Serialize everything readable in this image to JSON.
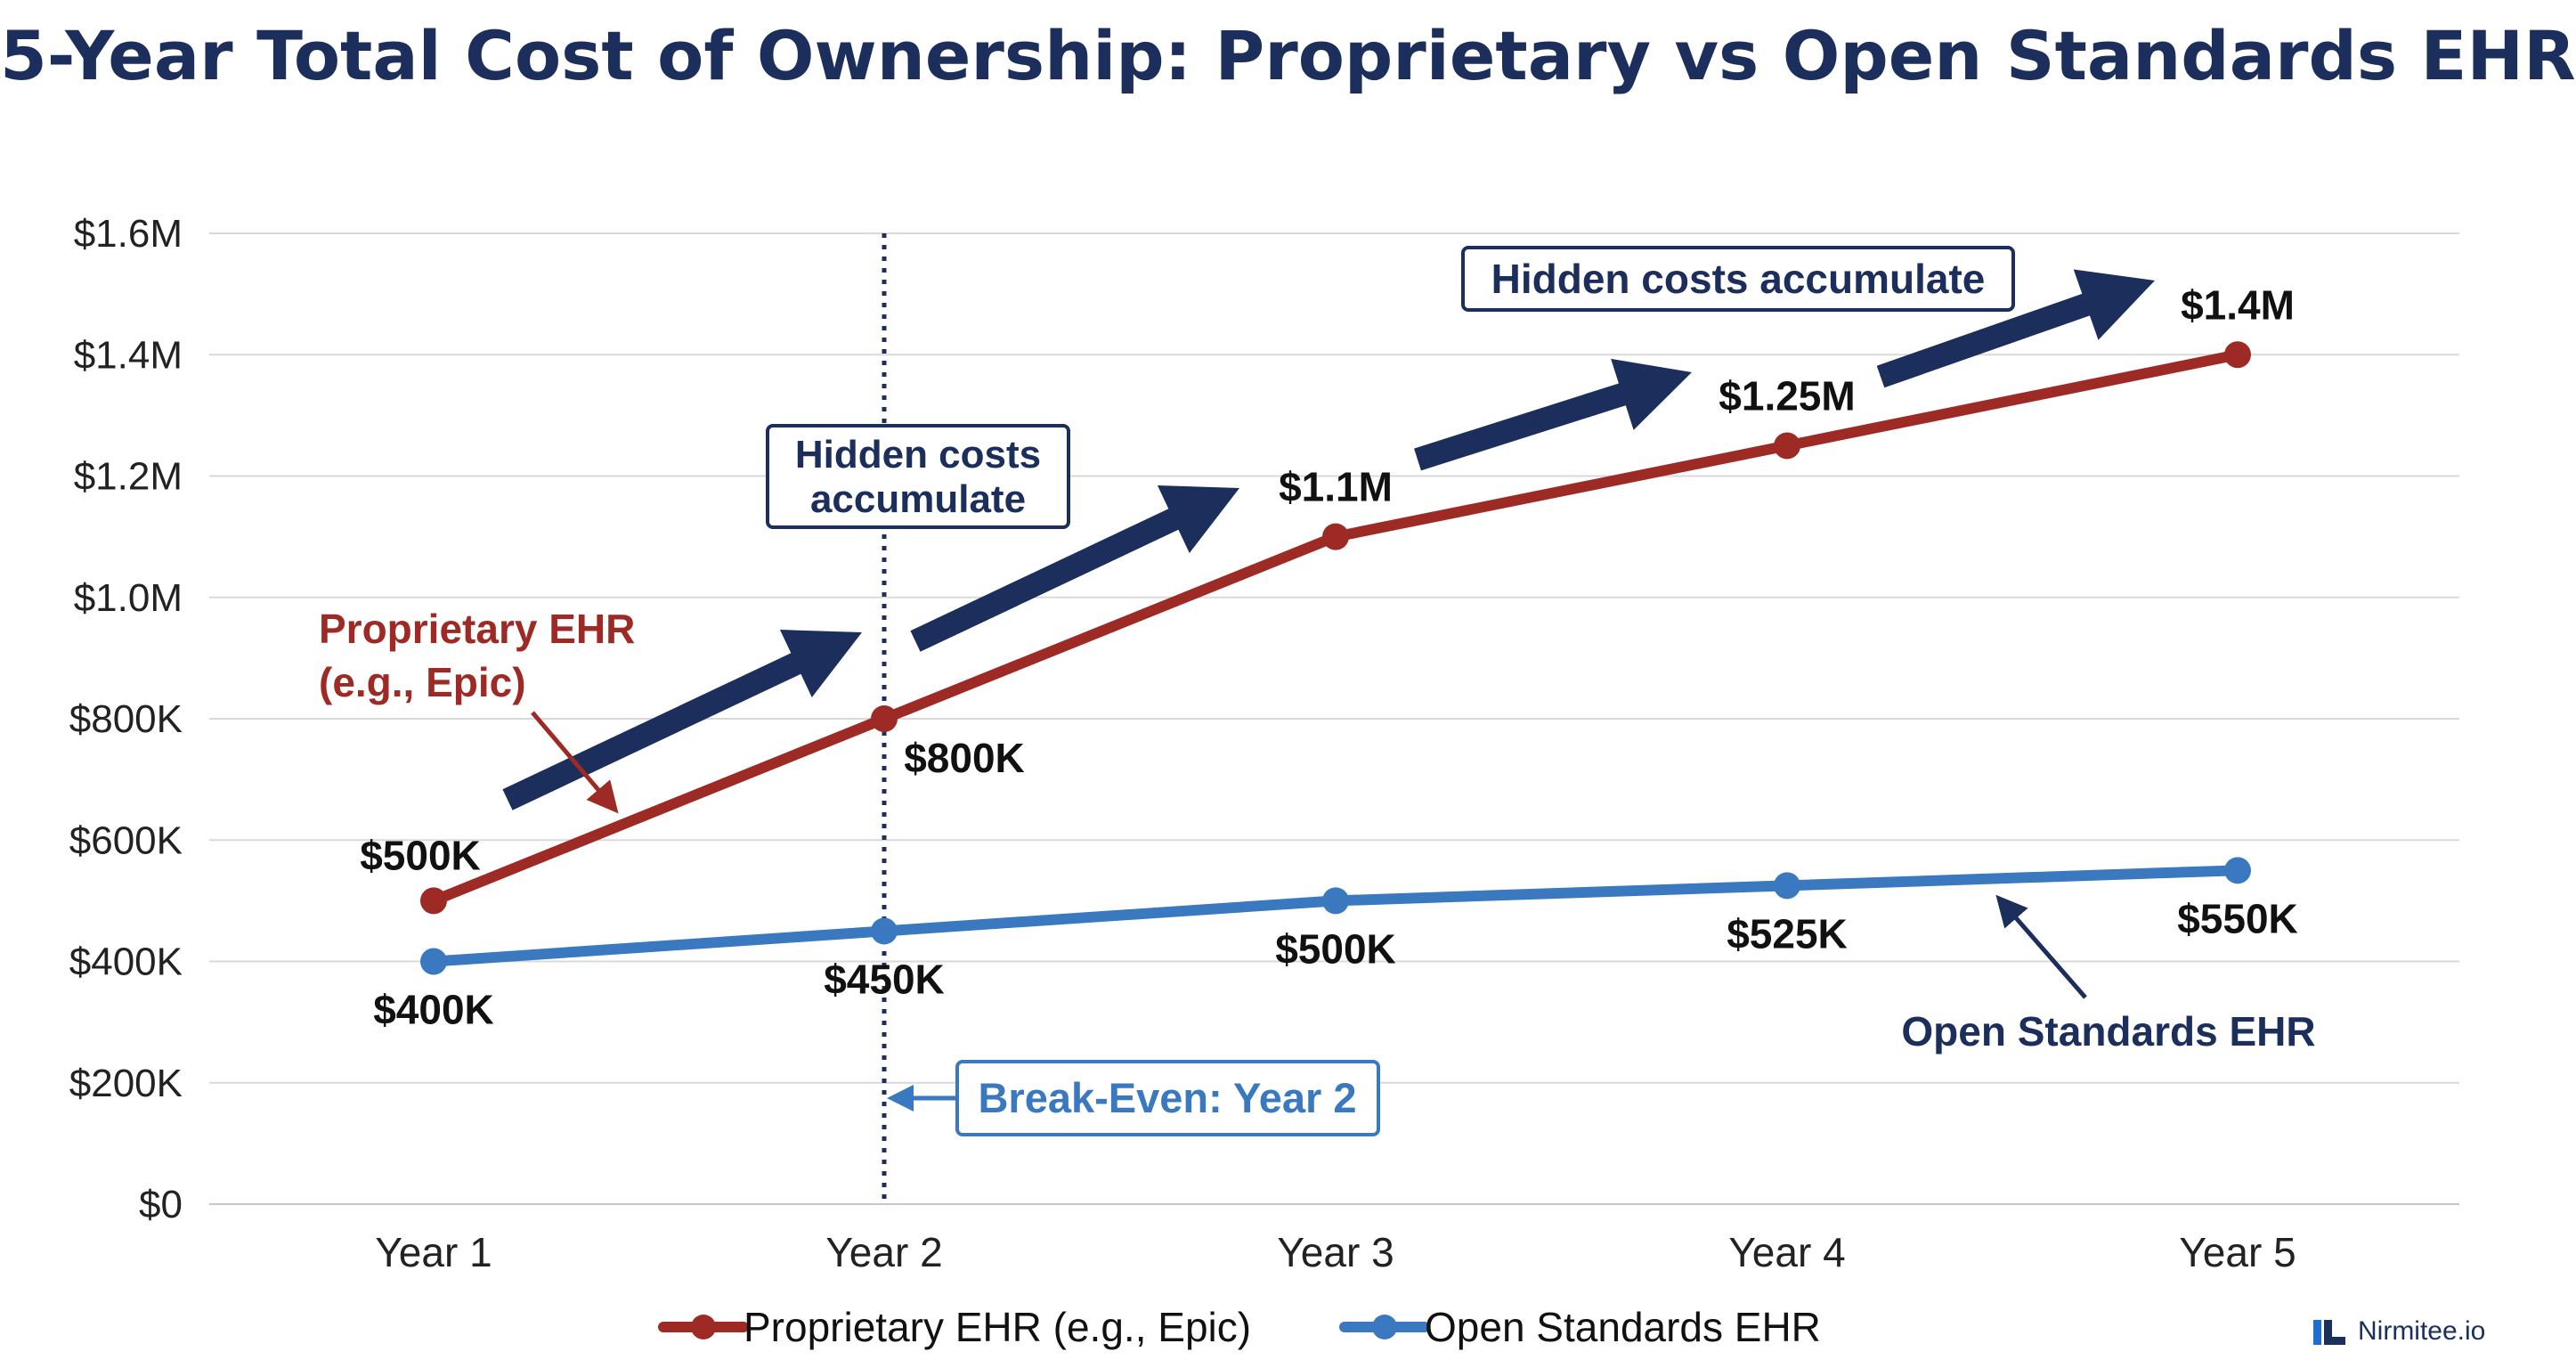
{
  "chart_data": {
    "type": "line",
    "title": "5-Year Total Cost of Ownership: Proprietary vs Open Standards EHR",
    "categories": [
      "Year 1",
      "Year 2",
      "Year 3",
      "Year 4",
      "Year 5"
    ],
    "y_ticks": [
      "$0",
      "$200K",
      "$400K",
      "$600K",
      "$800K",
      "$1.0M",
      "$1.2M",
      "$1.4M",
      "$1.6M"
    ],
    "ylim": [
      0,
      1600000
    ],
    "grid": true,
    "legend_position": "bottom",
    "series": [
      {
        "name": "Proprietary EHR (e.g., Epic)",
        "color": "#9e2a25",
        "values": [
          500000,
          800000,
          1100000,
          1250000,
          1400000
        ],
        "labels": [
          "$500K",
          "$800K",
          "$1.1M",
          "$1.25M",
          "$1.4M"
        ]
      },
      {
        "name": "Open Standards EHR",
        "color": "#3a78bf",
        "values": [
          400000,
          450000,
          500000,
          525000,
          550000
        ],
        "labels": [
          "$400K",
          "$450K",
          "$500K",
          "$525K",
          "$550K"
        ]
      }
    ],
    "annotations": {
      "proprietary_callout": [
        "Proprietary EHR",
        "(e.g., Epic)"
      ],
      "open_callout": "Open Standards EHR",
      "hidden_costs_1": [
        "Hidden costs",
        "accumulate"
      ],
      "hidden_costs_2": "Hidden costs accumulate",
      "break_even": "Break-Even: Year 2",
      "break_even_year": "Year 2"
    }
  },
  "brand": {
    "name": "Nirmitee.io"
  },
  "colors": {
    "title": "#1b2e5c",
    "navy": "#1b2e5c",
    "red": "#9e2a25",
    "blue": "#3a78bf",
    "grid": "#d9d9d9"
  }
}
